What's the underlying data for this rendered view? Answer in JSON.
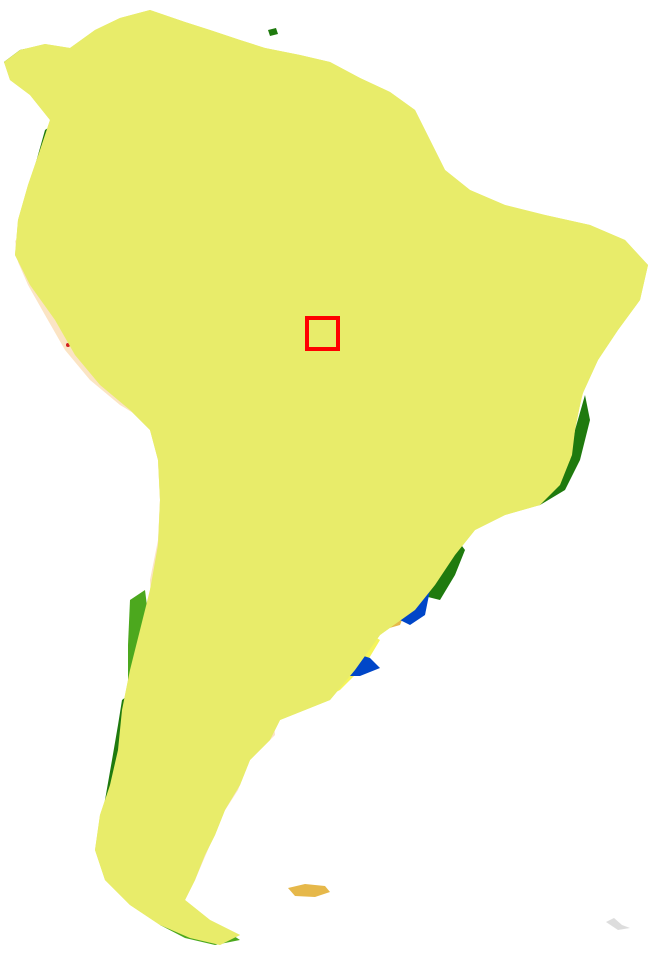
{
  "map": {
    "type": "land-cover-classification",
    "colors": {
      "dense_forest": "#006400",
      "forest": "#1f7a0e",
      "mixed_forest": "#4ca81e",
      "open_forest": "#39c26a",
      "wetland": "#2fd48a",
      "grassland": "#f5f55a",
      "cropland": "#e8ec6a",
      "shrubland": "#e6b84a",
      "sparse": "#b8860b",
      "bare": "#996500",
      "desert": "#fbe4c4",
      "water": "#0046c8",
      "urban": "#d22020",
      "snow": "#f4f4f4"
    },
    "marker": {
      "shape": "square",
      "color": "#ff0000"
    }
  }
}
